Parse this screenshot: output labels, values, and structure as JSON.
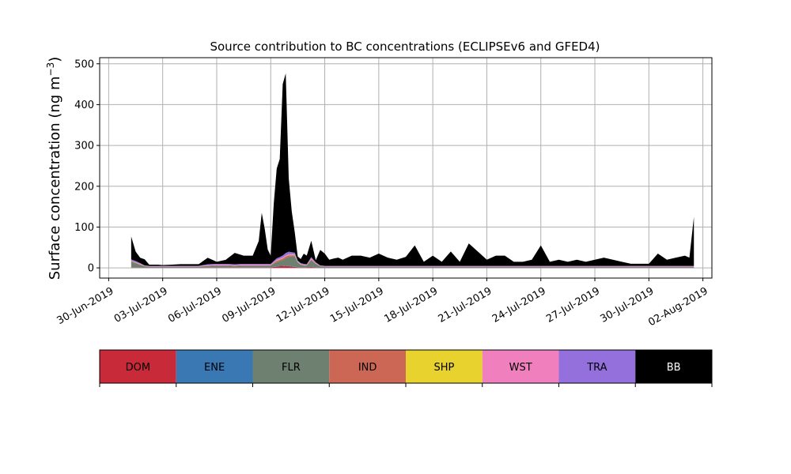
{
  "chart_data": {
    "type": "area",
    "stacked": true,
    "title": "Source contribution to BC concentrations (ECLIPSEv6 and GFED4)",
    "ylabel_main": "Surface concentration (ng m",
    "ylabel_sup": "−3",
    "ylabel_close": ")",
    "xlabel": "",
    "xlim": [
      "2019-06-29T12:00",
      "2019-08-02T12:00"
    ],
    "ylim": [
      -25,
      515
    ],
    "yticks": [
      0,
      100,
      200,
      300,
      400,
      500
    ],
    "ytick_labels": [
      "0",
      "100",
      "200",
      "300",
      "400",
      "500"
    ],
    "xticks": [
      "2019-06-30",
      "2019-07-03",
      "2019-07-06",
      "2019-07-09",
      "2019-07-12",
      "2019-07-15",
      "2019-07-18",
      "2019-07-21",
      "2019-07-24",
      "2019-07-27",
      "2019-07-30",
      "2019-08-02"
    ],
    "xtick_labels": [
      "30-Jun-2019",
      "03-Jul-2019",
      "06-Jul-2019",
      "09-Jul-2019",
      "12-Jul-2019",
      "15-Jul-2019",
      "18-Jul-2019",
      "21-Jul-2019",
      "24-Jul-2019",
      "27-Jul-2019",
      "30-Jul-2019",
      "02-Aug-2019"
    ],
    "grid": true,
    "x": [
      "2019-07-01T06:00",
      "2019-07-01T12:00",
      "2019-07-01T18:00",
      "2019-07-02T00:00",
      "2019-07-02T06:00",
      "2019-07-02T12:00",
      "2019-07-02T18:00",
      "2019-07-03T00:00",
      "2019-07-03T12:00",
      "2019-07-04T00:00",
      "2019-07-04T12:00",
      "2019-07-05T00:00",
      "2019-07-05T12:00",
      "2019-07-06T00:00",
      "2019-07-06T12:00",
      "2019-07-07T00:00",
      "2019-07-07T12:00",
      "2019-07-08T00:00",
      "2019-07-08T08:00",
      "2019-07-08T12:00",
      "2019-07-08T16:00",
      "2019-07-08T20:00",
      "2019-07-09T00:00",
      "2019-07-09T04:00",
      "2019-07-09T08:00",
      "2019-07-09T12:00",
      "2019-07-09T16:00",
      "2019-07-09T20:00",
      "2019-07-10T00:00",
      "2019-07-10T04:00",
      "2019-07-10T08:00",
      "2019-07-10T12:00",
      "2019-07-10T16:00",
      "2019-07-10T20:00",
      "2019-07-11T00:00",
      "2019-07-11T06:00",
      "2019-07-11T12:00",
      "2019-07-11T18:00",
      "2019-07-12T00:00",
      "2019-07-12T06:00",
      "2019-07-12T12:00",
      "2019-07-12T18:00",
      "2019-07-13T00:00",
      "2019-07-13T12:00",
      "2019-07-14T00:00",
      "2019-07-14T12:00",
      "2019-07-15T00:00",
      "2019-07-15T12:00",
      "2019-07-16T00:00",
      "2019-07-16T12:00",
      "2019-07-17T00:00",
      "2019-07-17T12:00",
      "2019-07-18T00:00",
      "2019-07-18T12:00",
      "2019-07-19T00:00",
      "2019-07-19T12:00",
      "2019-07-20T00:00",
      "2019-07-20T12:00",
      "2019-07-21T00:00",
      "2019-07-21T12:00",
      "2019-07-22T00:00",
      "2019-07-22T12:00",
      "2019-07-23T00:00",
      "2019-07-23T12:00",
      "2019-07-24T00:00",
      "2019-07-24T12:00",
      "2019-07-25T00:00",
      "2019-07-25T12:00",
      "2019-07-26T00:00",
      "2019-07-26T12:00",
      "2019-07-27T00:00",
      "2019-07-27T12:00",
      "2019-07-28T00:00",
      "2019-07-28T12:00",
      "2019-07-29T00:00",
      "2019-07-29T12:00",
      "2019-07-30T00:00",
      "2019-07-30T12:00",
      "2019-07-31T00:00",
      "2019-07-31T12:00",
      "2019-08-01T00:00",
      "2019-08-01T06:00",
      "2019-08-01T12:00"
    ],
    "series": [
      {
        "name": "DOM",
        "color": "#c92a3a",
        "values": [
          1,
          1,
          1,
          0.5,
          0.5,
          0.5,
          0.5,
          0.5,
          0.5,
          0.5,
          0.5,
          0.5,
          1,
          1,
          1,
          1,
          1,
          1,
          1,
          1,
          1,
          1,
          1,
          2,
          3,
          4,
          4,
          5,
          4,
          3,
          2,
          1,
          1,
          1,
          1,
          2,
          1,
          0.5,
          0.5,
          0.5,
          0.5,
          0.5,
          0.5,
          0.5,
          0.5,
          0.5,
          0.5,
          0.5,
          0.5,
          0.5,
          0.5,
          0.5,
          0.5,
          0.5,
          0.5,
          0.5,
          0.5,
          0.5,
          0.5,
          0.5,
          0.5,
          0.5,
          0.5,
          0.5,
          0.5,
          0.5,
          0.5,
          0.5,
          0.5,
          0.5,
          0.5,
          0.5,
          0.5,
          0.5,
          0.5,
          0.5,
          0.5,
          0.5,
          0.5,
          0.5,
          0.5,
          0.5,
          0.5
        ]
      },
      {
        "name": "ENE",
        "color": "#3a78b4",
        "values": [
          0.5,
          0.5,
          0.5,
          0.3,
          0.3,
          0.3,
          0.3,
          0.3,
          0.3,
          0.3,
          0.3,
          0.3,
          0.5,
          0.5,
          0.5,
          0.5,
          0.5,
          0.5,
          0.5,
          0.5,
          0.5,
          0.5,
          0.5,
          0.5,
          1,
          1,
          1,
          1,
          1,
          1,
          1,
          0.5,
          0.5,
          0.5,
          0.5,
          1,
          0.5,
          0.3,
          0.3,
          0.3,
          0.3,
          0.3,
          0.3,
          0.3,
          0.3,
          0.3,
          0.3,
          0.3,
          0.3,
          0.3,
          0.3,
          0.3,
          0.3,
          0.3,
          0.3,
          0.3,
          0.3,
          0.3,
          0.3,
          0.3,
          0.3,
          0.3,
          0.3,
          0.3,
          0.3,
          0.3,
          0.3,
          0.3,
          0.3,
          0.3,
          0.3,
          0.3,
          0.3,
          0.3,
          0.3,
          0.3,
          0.3,
          0.3,
          0.3,
          0.3,
          0.3,
          0.3,
          0.3
        ]
      },
      {
        "name": "FLR",
        "color": "#6e8070",
        "values": [
          14,
          10,
          6,
          3,
          2,
          2,
          2,
          2,
          2,
          2,
          2,
          2,
          3,
          4,
          4,
          3,
          4,
          4,
          4,
          4,
          4,
          4,
          4,
          8,
          10,
          12,
          14,
          18,
          22,
          24,
          26,
          12,
          6,
          4,
          4,
          16,
          8,
          3,
          2,
          2,
          2,
          2,
          2,
          2,
          2,
          2,
          2,
          2,
          2,
          2,
          2,
          2,
          2,
          2,
          2,
          2,
          2,
          2,
          2,
          2,
          2,
          2,
          2,
          2,
          2,
          2,
          2,
          2,
          2,
          2,
          2,
          2,
          2,
          2,
          2,
          2,
          2,
          2,
          2,
          2,
          2,
          2,
          2
        ]
      },
      {
        "name": "IND",
        "color": "#cc6655",
        "values": [
          1,
          1,
          1,
          0.5,
          0.5,
          0.5,
          0.5,
          0.5,
          0.5,
          0.5,
          0.5,
          0.5,
          1,
          1,
          1,
          1,
          1,
          1,
          1,
          1,
          1,
          1,
          1,
          2,
          3,
          3,
          4,
          4,
          4,
          3,
          2,
          1,
          1,
          1,
          1,
          2,
          1,
          0.5,
          0.5,
          0.5,
          0.5,
          0.5,
          0.5,
          0.5,
          0.5,
          0.5,
          0.5,
          0.5,
          0.5,
          0.5,
          0.5,
          0.5,
          0.5,
          0.5,
          0.5,
          0.5,
          0.5,
          0.5,
          0.5,
          0.5,
          0.5,
          0.5,
          0.5,
          0.5,
          0.5,
          0.5,
          0.5,
          0.5,
          0.5,
          0.5,
          0.5,
          0.5,
          0.5,
          0.5,
          0.5,
          0.5,
          0.5,
          0.5,
          0.5,
          0.5,
          0.5,
          0.5,
          0.5
        ]
      },
      {
        "name": "SHP",
        "color": "#e8d22e",
        "values": [
          0.3,
          0.3,
          0.3,
          0.2,
          0.2,
          0.2,
          0.2,
          0.2,
          0.2,
          0.2,
          0.2,
          0.2,
          0.3,
          0.3,
          0.3,
          0.3,
          0.3,
          0.3,
          0.3,
          0.3,
          0.3,
          0.3,
          0.3,
          0.3,
          0.5,
          0.5,
          0.5,
          0.5,
          0.5,
          0.5,
          0.5,
          0.3,
          0.3,
          0.3,
          0.3,
          0.5,
          0.3,
          0.2,
          0.2,
          0.2,
          0.2,
          0.2,
          0.2,
          0.2,
          0.2,
          0.2,
          0.2,
          0.2,
          0.2,
          0.2,
          0.2,
          0.2,
          0.2,
          0.2,
          0.2,
          0.2,
          0.2,
          0.2,
          0.2,
          0.2,
          0.2,
          0.2,
          0.2,
          0.2,
          0.2,
          0.2,
          0.2,
          0.2,
          0.2,
          0.2,
          0.2,
          0.2,
          0.2,
          0.2,
          0.2,
          0.2,
          0.2,
          0.2,
          0.2,
          0.2,
          0.2,
          0.2,
          0.2
        ]
      },
      {
        "name": "WST",
        "color": "#f07fbe",
        "values": [
          1,
          1,
          1,
          0.5,
          0.5,
          0.5,
          0.5,
          0.5,
          0.5,
          0.5,
          0.5,
          0.5,
          1,
          1,
          1,
          1,
          1,
          1,
          1,
          1,
          1,
          1,
          1,
          1,
          2,
          2,
          2,
          2,
          2,
          2,
          2,
          1,
          1,
          1,
          1,
          2,
          1,
          0.5,
          0.5,
          0.5,
          0.5,
          0.5,
          0.5,
          0.5,
          0.5,
          0.5,
          0.5,
          0.5,
          0.5,
          0.5,
          0.5,
          0.5,
          0.5,
          0.5,
          0.5,
          0.5,
          0.5,
          0.5,
          0.5,
          0.5,
          0.5,
          0.5,
          0.5,
          0.5,
          0.5,
          0.5,
          0.5,
          0.5,
          0.5,
          0.5,
          0.5,
          0.5,
          0.5,
          0.5,
          0.5,
          0.5,
          0.5,
          0.5,
          0.5,
          0.5,
          0.5,
          0.5,
          0.5
        ]
      },
      {
        "name": "TRA",
        "color": "#9370db",
        "values": [
          3,
          3,
          2,
          1,
          1,
          1,
          1,
          1,
          1,
          1,
          1,
          1,
          2,
          2,
          2,
          2,
          2,
          2,
          2,
          2,
          2,
          2,
          2,
          3,
          4,
          4,
          5,
          6,
          6,
          5,
          4,
          2,
          2,
          2,
          1,
          3,
          2,
          1,
          1,
          1,
          1,
          1,
          1,
          1,
          1,
          1,
          1,
          1,
          1,
          1,
          1,
          1,
          1,
          1,
          1,
          1,
          1,
          1,
          1,
          1,
          1,
          1,
          1,
          1,
          1,
          1,
          1,
          1,
          1,
          1,
          1,
          1,
          1,
          1,
          1,
          1,
          1,
          1,
          1,
          1,
          1,
          1,
          1
        ]
      },
      {
        "name": "BB",
        "color": "#000000",
        "values": [
          56,
          23,
          13,
          15,
          3,
          3,
          3,
          2,
          3,
          4,
          4,
          4,
          16,
          5,
          10,
          28,
          20,
          20,
          56,
          125,
          86,
          35,
          20,
          140,
          220,
          240,
          420,
          440,
          180,
          100,
          50,
          10,
          10,
          25,
          21,
          40,
          5,
          38,
          30,
          15,
          18,
          20,
          15,
          25,
          25,
          20,
          30,
          20,
          15,
          22,
          50,
          10,
          25,
          10,
          35,
          10,
          55,
          35,
          15,
          25,
          25,
          10,
          10,
          15,
          50,
          10,
          15,
          10,
          15,
          10,
          15,
          20,
          15,
          10,
          5,
          5,
          5,
          30,
          15,
          20,
          25,
          20,
          120
        ]
      }
    ]
  },
  "legend": {
    "items": [
      {
        "name": "DOM",
        "color": "#c92a3a",
        "text_color": "#000000"
      },
      {
        "name": "ENE",
        "color": "#3a78b4",
        "text_color": "#000000"
      },
      {
        "name": "FLR",
        "color": "#6e8070",
        "text_color": "#000000"
      },
      {
        "name": "IND",
        "color": "#cc6655",
        "text_color": "#000000"
      },
      {
        "name": "SHP",
        "color": "#e8d22e",
        "text_color": "#000000"
      },
      {
        "name": "WST",
        "color": "#f07fbe",
        "text_color": "#000000"
      },
      {
        "name": "TRA",
        "color": "#9370db",
        "text_color": "#000000"
      },
      {
        "name": "BB",
        "color": "#000000",
        "text_color": "#ffffff"
      }
    ]
  }
}
